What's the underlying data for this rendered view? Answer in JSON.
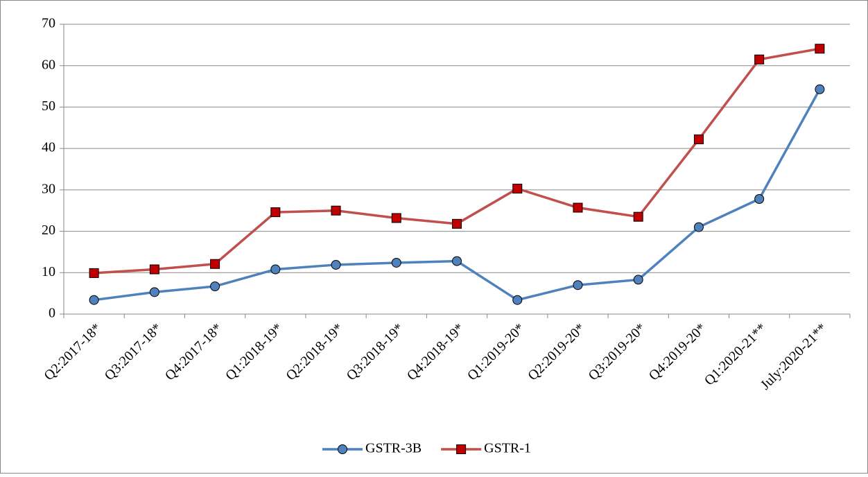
{
  "chart_data": {
    "type": "line",
    "categories": [
      "Q2:2017-18*",
      "Q3:2017-18*",
      "Q4:2017-18*",
      "Q1:2018-19*",
      "Q2:2018-19*",
      "Q3:2018-19*",
      "Q4:2018-19*",
      "Q1:2019-20*",
      "Q2:2019-20*",
      "Q3:2019-20*",
      "Q4:2019-20*",
      "Q1:2020-21**",
      "July:2020-21**"
    ],
    "series": [
      {
        "name": "GSTR-3B",
        "color": "#4f81bd",
        "marker": "circle",
        "values": [
          3.4,
          5.3,
          6.7,
          10.8,
          11.9,
          12.4,
          12.8,
          3.4,
          7.0,
          8.3,
          21.0,
          27.8,
          54.3
        ]
      },
      {
        "name": "GSTR-1",
        "color": "#c0504d",
        "marker": "square",
        "values": [
          9.9,
          10.8,
          12.1,
          24.6,
          25.0,
          23.2,
          21.8,
          30.3,
          25.7,
          23.5,
          42.2,
          61.5,
          64.1
        ]
      }
    ],
    "ylim": [
      0,
      70
    ],
    "yticks": [
      0,
      10,
      20,
      30,
      40,
      50,
      60,
      70
    ],
    "grid": true,
    "legend": "bottom"
  }
}
